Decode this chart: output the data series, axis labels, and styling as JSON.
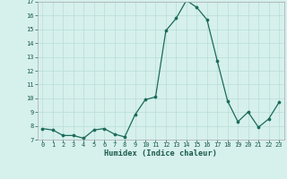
{
  "x": [
    0,
    1,
    2,
    3,
    4,
    5,
    6,
    7,
    8,
    9,
    10,
    11,
    12,
    13,
    14,
    15,
    16,
    17,
    18,
    19,
    20,
    21,
    22,
    23
  ],
  "y": [
    7.8,
    7.7,
    7.3,
    7.3,
    7.1,
    7.7,
    7.8,
    7.4,
    7.2,
    8.8,
    9.9,
    10.1,
    14.9,
    15.8,
    17.1,
    16.6,
    15.7,
    12.7,
    9.8,
    8.3,
    9.0,
    7.9,
    8.5,
    9.7
  ],
  "xlabel": "Humidex (Indice chaleur)",
  "ylim": [
    7,
    17
  ],
  "xlim": [
    -0.5,
    23.5
  ],
  "yticks": [
    7,
    8,
    9,
    10,
    11,
    12,
    13,
    14,
    15,
    16,
    17
  ],
  "xticks": [
    0,
    1,
    2,
    3,
    4,
    5,
    6,
    7,
    8,
    9,
    10,
    11,
    12,
    13,
    14,
    15,
    16,
    17,
    18,
    19,
    20,
    21,
    22,
    23
  ],
  "line_color": "#1a6b5a",
  "marker": "o",
  "marker_size": 2.2,
  "bg_color": "#d6f0ec",
  "grid_color": "#b8dcd7",
  "tick_color": "#1a5a4a",
  "xlabel_color": "#1a5a4a",
  "tick_fontsize": 5.0,
  "xlabel_fontsize": 6.2
}
